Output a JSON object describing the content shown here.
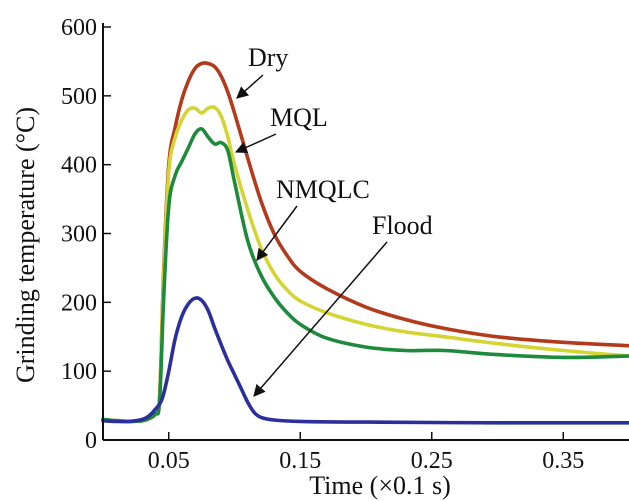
{
  "chart_data": {
    "type": "line",
    "title": "",
    "xlabel": "Time (×0.1 s)",
    "ylabel": "Grinding temperature (°C)",
    "xlim": [
      0,
      0.4
    ],
    "ylim": [
      0,
      600
    ],
    "xticks": [
      0.05,
      0.15,
      0.25,
      0.35
    ],
    "yticks": [
      0,
      100,
      200,
      300,
      400,
      500,
      600
    ],
    "xtick_labels": [
      "0.05",
      "0.15",
      "0.25",
      "0.35"
    ],
    "ytick_labels": [
      "0",
      "100",
      "200",
      "300",
      "400",
      "500",
      "600"
    ],
    "grid": false,
    "legend": "none",
    "series": [
      {
        "name": "Dry",
        "color": "#b33a1a",
        "x": [
          0,
          0.01,
          0.02,
          0.03,
          0.035,
          0.04,
          0.043,
          0.046,
          0.05,
          0.055,
          0.06,
          0.065,
          0.07,
          0.075,
          0.08,
          0.085,
          0.09,
          0.095,
          0.1,
          0.11,
          0.12,
          0.13,
          0.14,
          0.15,
          0.17,
          0.2,
          0.23,
          0.26,
          0.3,
          0.35,
          0.4
        ],
        "values": [
          30,
          28,
          27,
          28,
          31,
          38,
          60,
          240,
          400,
          455,
          495,
          522,
          540,
          547,
          547,
          542,
          528,
          505,
          475,
          410,
          348,
          300,
          268,
          245,
          220,
          193,
          175,
          162,
          150,
          142,
          137
        ]
      },
      {
        "name": "MQL",
        "color": "#d4d432",
        "x": [
          0,
          0.01,
          0.02,
          0.03,
          0.035,
          0.04,
          0.043,
          0.046,
          0.05,
          0.055,
          0.06,
          0.065,
          0.07,
          0.075,
          0.08,
          0.085,
          0.09,
          0.095,
          0.1,
          0.11,
          0.12,
          0.13,
          0.14,
          0.15,
          0.17,
          0.2,
          0.23,
          0.26,
          0.3,
          0.35,
          0.4
        ],
        "values": [
          30,
          28,
          27,
          28,
          31,
          38,
          60,
          230,
          390,
          440,
          465,
          480,
          482,
          475,
          482,
          483,
          470,
          440,
          400,
          335,
          280,
          242,
          218,
          202,
          185,
          168,
          157,
          150,
          140,
          130,
          122
        ]
      },
      {
        "name": "NMQLC",
        "color": "#1e8a3c",
        "x": [
          0,
          0.01,
          0.02,
          0.03,
          0.035,
          0.04,
          0.043,
          0.046,
          0.05,
          0.055,
          0.06,
          0.065,
          0.07,
          0.075,
          0.08,
          0.085,
          0.09,
          0.095,
          0.1,
          0.11,
          0.12,
          0.13,
          0.14,
          0.15,
          0.17,
          0.2,
          0.23,
          0.26,
          0.3,
          0.35,
          0.4
        ],
        "values": [
          30,
          28,
          27,
          28,
          31,
          38,
          55,
          200,
          340,
          385,
          405,
          425,
          445,
          452,
          440,
          430,
          432,
          420,
          375,
          290,
          240,
          208,
          185,
          168,
          148,
          135,
          130,
          130,
          124,
          120,
          122
        ]
      },
      {
        "name": "Flood",
        "color": "#2b2f9c",
        "x": [
          0,
          0.01,
          0.02,
          0.03,
          0.035,
          0.04,
          0.045,
          0.05,
          0.055,
          0.06,
          0.065,
          0.07,
          0.075,
          0.08,
          0.085,
          0.09,
          0.095,
          0.1,
          0.105,
          0.11,
          0.115,
          0.12,
          0.13,
          0.15,
          0.2,
          0.3,
          0.4
        ],
        "values": [
          28,
          27,
          27,
          30,
          35,
          45,
          60,
          100,
          148,
          180,
          198,
          206,
          203,
          188,
          162,
          138,
          115,
          95,
          75,
          55,
          40,
          33,
          29,
          27,
          26,
          25,
          25
        ]
      }
    ],
    "annotations": [
      {
        "text": "Dry",
        "series": "Dry"
      },
      {
        "text": "MQL",
        "series": "MQL"
      },
      {
        "text": "NMQLC",
        "series": "NMQLC"
      },
      {
        "text": "Flood",
        "series": "Flood"
      }
    ]
  }
}
